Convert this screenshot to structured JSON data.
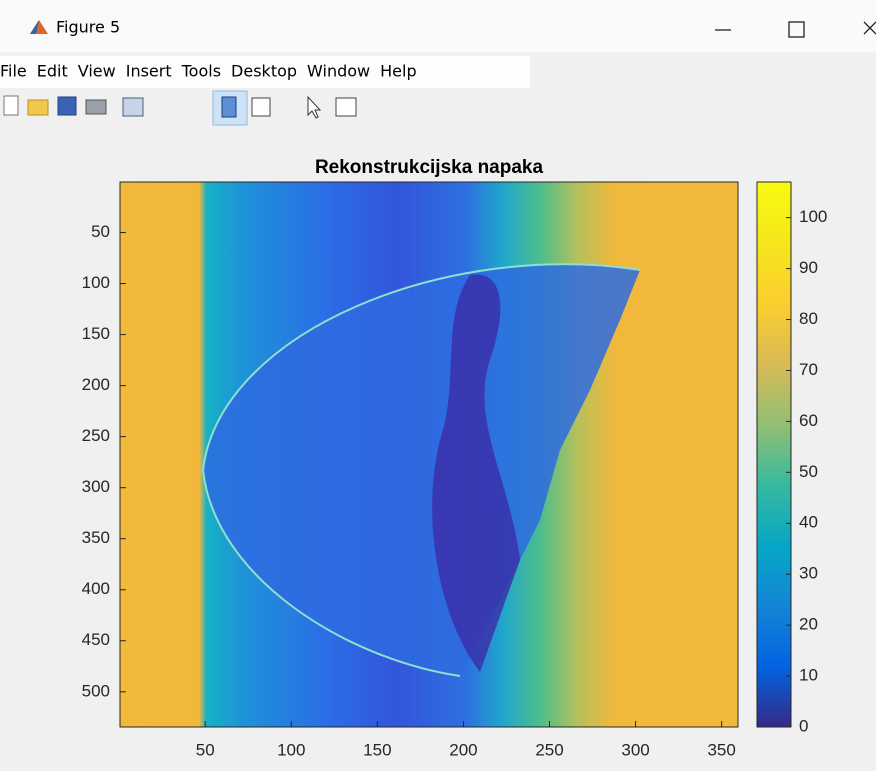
{
  "window": {
    "title": "Figure 5",
    "menu": [
      "File",
      "Edit",
      "View",
      "Insert",
      "Tools",
      "Desktop",
      "Window",
      "Help"
    ]
  },
  "chart_data": {
    "type": "image",
    "title": "Rekonstrukcijska napaka",
    "xlim": [
      0.5,
      359.5
    ],
    "ylim": [
      0.5,
      534.5
    ],
    "y_reversed": true,
    "xticks": [
      50,
      100,
      150,
      200,
      250,
      300,
      350
    ],
    "yticks": [
      50,
      100,
      150,
      200,
      250,
      300,
      350,
      400,
      450,
      500
    ],
    "colorbar": {
      "clim": [
        0,
        107
      ],
      "ticks": [
        0,
        10,
        20,
        30,
        40,
        50,
        60,
        70,
        80,
        90,
        100
      ],
      "colormap": "parula"
    }
  }
}
